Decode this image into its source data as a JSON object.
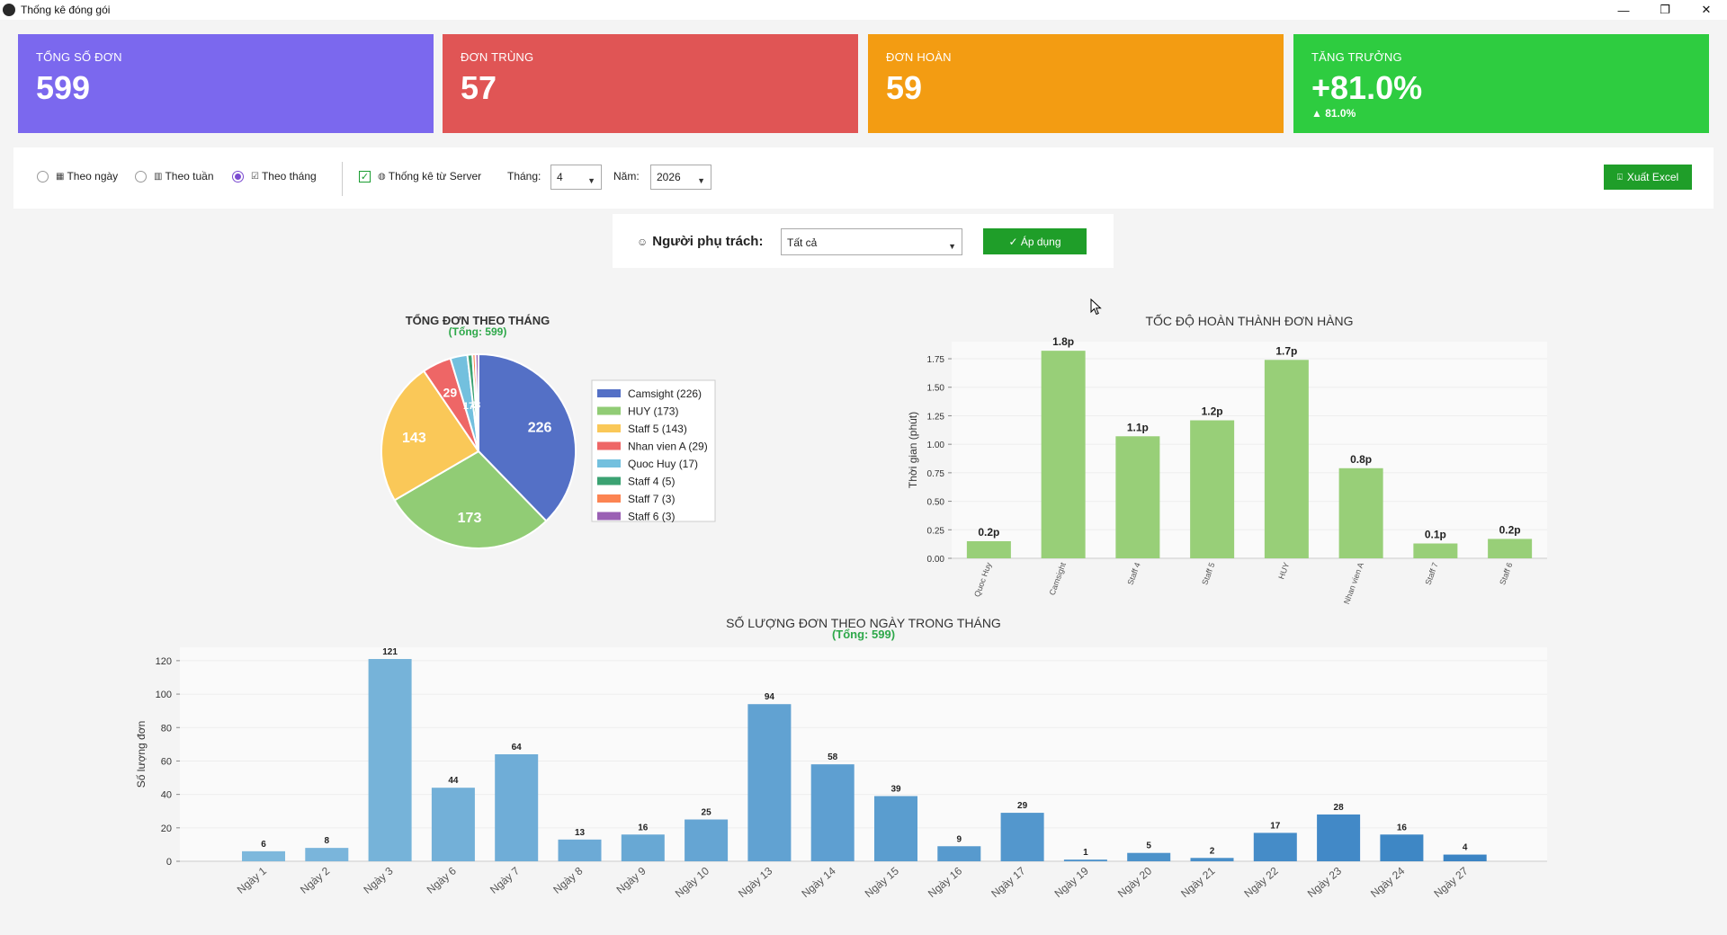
{
  "window": {
    "title": "Thống kê đóng gói"
  },
  "cards": [
    {
      "label": "TỔNG SỐ ĐƠN",
      "value": "599",
      "sub": "",
      "color": "#7b68ee"
    },
    {
      "label": "ĐƠN TRÙNG",
      "value": "57",
      "sub": "",
      "color": "#e05555"
    },
    {
      "label": "ĐƠN HOÀN",
      "value": "59",
      "sub": "",
      "color": "#f39c12"
    },
    {
      "label": "TĂNG TRƯỞNG",
      "value": "+81.0%",
      "sub": "▲ 81.0%",
      "color": "#2ecc40"
    }
  ],
  "filters": {
    "by_day": "Theo ngày",
    "by_week": "Theo tuần",
    "by_month": "Theo tháng",
    "server_stats": "Thống kê từ Server",
    "month_label": "Tháng:",
    "month_value": "4",
    "year_label": "Năm:",
    "year_value": "2026",
    "export_label": "Xuất Excel"
  },
  "owner": {
    "label": "Người phụ trách:",
    "value": "Tất cả",
    "apply_label": "✓ Áp dụng"
  },
  "chart_data": [
    {
      "type": "pie",
      "title": "TỔNG ĐƠN THEO THÁNG",
      "subtitle": "(Tổng: 599)",
      "labels": [
        "Camsight",
        "HUY",
        "Staff 5",
        "Nhan vien A",
        "Quoc Huy",
        "Staff 4",
        "Staff 7",
        "Staff 6"
      ],
      "values": [
        226,
        173,
        143,
        29,
        17,
        5,
        3,
        3
      ],
      "legend": [
        "Camsight (226)",
        "HUY (173)",
        "Staff 5 (143)",
        "Nhan vien A (29)",
        "Quoc Huy (17)",
        "Staff 4 (5)",
        "Staff 7 (3)",
        "Staff 6 (3)"
      ],
      "colors": [
        "#5470c6",
        "#91cc75",
        "#fac858",
        "#ee6666",
        "#73c0de",
        "#3ba272",
        "#fc8452",
        "#9a60b4"
      ],
      "legend_position": "right"
    },
    {
      "type": "bar",
      "title": "TỐC ĐỘ HOÀN THÀNH ĐƠN HÀNG",
      "ylabel": "Thời gian (phút)",
      "categories": [
        "Quoc Huy",
        "Camsight",
        "Staff 4",
        "Staff 5",
        "HUY",
        "Nhan vien A",
        "Staff 7",
        "Staff 6"
      ],
      "values": [
        0.15,
        1.82,
        1.07,
        1.21,
        1.74,
        0.79,
        0.13,
        0.17
      ],
      "data_labels": [
        "0.2p",
        "1.8p",
        "1.1p",
        "1.2p",
        "1.7p",
        "0.8p",
        "0.1p",
        "0.2p"
      ],
      "yticks": [
        "0.00",
        "0.25",
        "0.50",
        "0.75",
        "1.00",
        "1.25",
        "1.50",
        "1.75"
      ],
      "ylim": [
        0,
        1.9
      ],
      "color": "#98cf78"
    },
    {
      "type": "bar",
      "title": "SỐ LƯỢNG ĐƠN THEO NGÀY TRONG THÁNG",
      "subtitle": "(Tổng: 599)",
      "ylabel": "Số lượng đơn",
      "categories": [
        "Ngày 1",
        "Ngày 2",
        "Ngày 3",
        "Ngày 6",
        "Ngày 7",
        "Ngày 8",
        "Ngày 9",
        "Ngày 10",
        "Ngày 13",
        "Ngày 14",
        "Ngày 15",
        "Ngày 16",
        "Ngày 17",
        "Ngày 19",
        "Ngày 20",
        "Ngày 21",
        "Ngày 22",
        "Ngày 23",
        "Ngày 24",
        "Ngày 27"
      ],
      "values": [
        6,
        8,
        121,
        44,
        64,
        13,
        16,
        25,
        94,
        58,
        39,
        9,
        29,
        1,
        5,
        2,
        17,
        28,
        16,
        4
      ],
      "yticks": [
        "0",
        "20",
        "40",
        "60",
        "80",
        "100",
        "120"
      ],
      "ylim": [
        0,
        128
      ],
      "color_start": "#7db8dc",
      "color_end": "#3b84c4"
    }
  ]
}
